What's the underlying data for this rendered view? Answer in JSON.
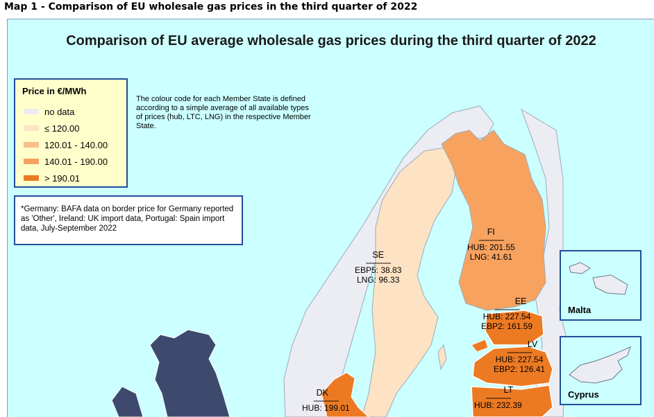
{
  "caption": "Map 1 - Comparison of EU wholesale gas prices in the third quarter of 2022",
  "map_title": "Comparison of EU average wholesale gas prices during the third quarter of 2022",
  "colors": {
    "sea": "#ccffff",
    "no_data": "#ececf3",
    "band1": "#fde3c4",
    "band2": "#f9be8a",
    "band3": "#f7a25e",
    "band4": "#ec7a23",
    "uk_land": "#3d4a6e",
    "frame": "#1f4e9c"
  },
  "legend": {
    "title": "Price in €/MWh",
    "items": [
      {
        "label": "no data",
        "color": "#ececf3"
      },
      {
        "label": "≤ 120.00",
        "color": "#fde3c4"
      },
      {
        "label": "120.01 - 140.00",
        "color": "#f9be8a"
      },
      {
        "label": "140.01 - 190.00",
        "color": "#f7a25e"
      },
      {
        "label": "> 190.01",
        "color": "#ec7a23"
      }
    ]
  },
  "legend_note": "The colour code for each Member State is defined according to a simple average of all  available types of prices (hub, LTC, LNG) in the respective Member State.",
  "footnote": "*Germany: BAFA data on border price for Germany reported as 'Other',  Ireland: UK import data, Portugal: Spain import data, July-September 2022",
  "separator": "------------",
  "countries": {
    "SE": {
      "code": "SE",
      "line1": "EBP5: 38.83",
      "line2": "LNG:  96.33"
    },
    "FI": {
      "code": "FI",
      "line1": "HUB:  201.55",
      "line2": "LNG:  41.61"
    },
    "EE": {
      "code": "EE",
      "line1": "HUB:  227.54",
      "line2": "EBP2: 161.59"
    },
    "LV": {
      "code": "LV",
      "line1": "HUB:  227.54",
      "line2": "EBP2: 126.41"
    },
    "LT": {
      "code": "LT",
      "line1": "HUB:  232.39"
    },
    "DK": {
      "code": "DK",
      "line1": "HUB:  199.01"
    }
  },
  "insets": {
    "malta": "Malta",
    "cyprus": "Cyprus"
  }
}
